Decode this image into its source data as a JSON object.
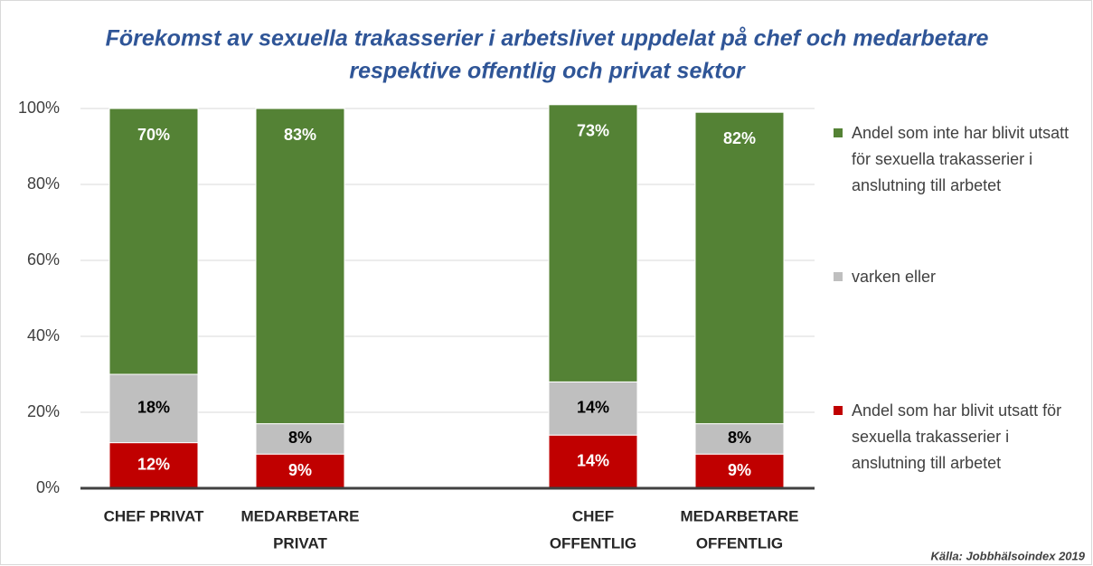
{
  "chart_data": {
    "type": "stacked_bar",
    "title": [
      "Förekomst av sexuella trakasserier i arbetslivet uppdelat på chef och medarbetare",
      "respektive offentlig och privat sektor"
    ],
    "categories": [
      [
        "CHEF PRIVAT"
      ],
      [
        "MEDARBETARE",
        "PRIVAT"
      ],
      null,
      [
        "CHEF",
        "OFFENTLIG"
      ],
      [
        "MEDARBETARE",
        "OFFENTLIG"
      ]
    ],
    "series": [
      {
        "name": "Andel som har blivit utsatt för sexuella trakasserier i anslutning till arbetet",
        "color": "#c00000",
        "values": [
          12,
          9,
          null,
          14,
          9
        ],
        "value_labels": [
          "12%",
          "9%",
          null,
          "14%",
          "9%"
        ]
      },
      {
        "name": "varken eller",
        "color": "#bfbfbf",
        "values": [
          18,
          8,
          null,
          14,
          8
        ],
        "value_labels": [
          "18%",
          "8%",
          null,
          "14%",
          "8%"
        ]
      },
      {
        "name": "Andel som inte  har blivit utsatt för sexuella trakasserier i anslutning till arbetet",
        "color": "#548235",
        "values": [
          70,
          83,
          null,
          73,
          82
        ],
        "value_labels": [
          "70%",
          "83%",
          null,
          "73%",
          "82%"
        ]
      }
    ],
    "ylim": [
      0,
      100
    ],
    "yticks": [
      {
        "value": 0,
        "label": "0%"
      },
      {
        "value": 20,
        "label": "20%"
      },
      {
        "value": 40,
        "label": "40%"
      },
      {
        "value": 60,
        "label": "60%"
      },
      {
        "value": 80,
        "label": "80%"
      },
      {
        "value": 100,
        "label": "100%"
      }
    ],
    "grid": true,
    "legend": "right",
    "source": "Källa: Jobbhälsoindex 2019"
  }
}
